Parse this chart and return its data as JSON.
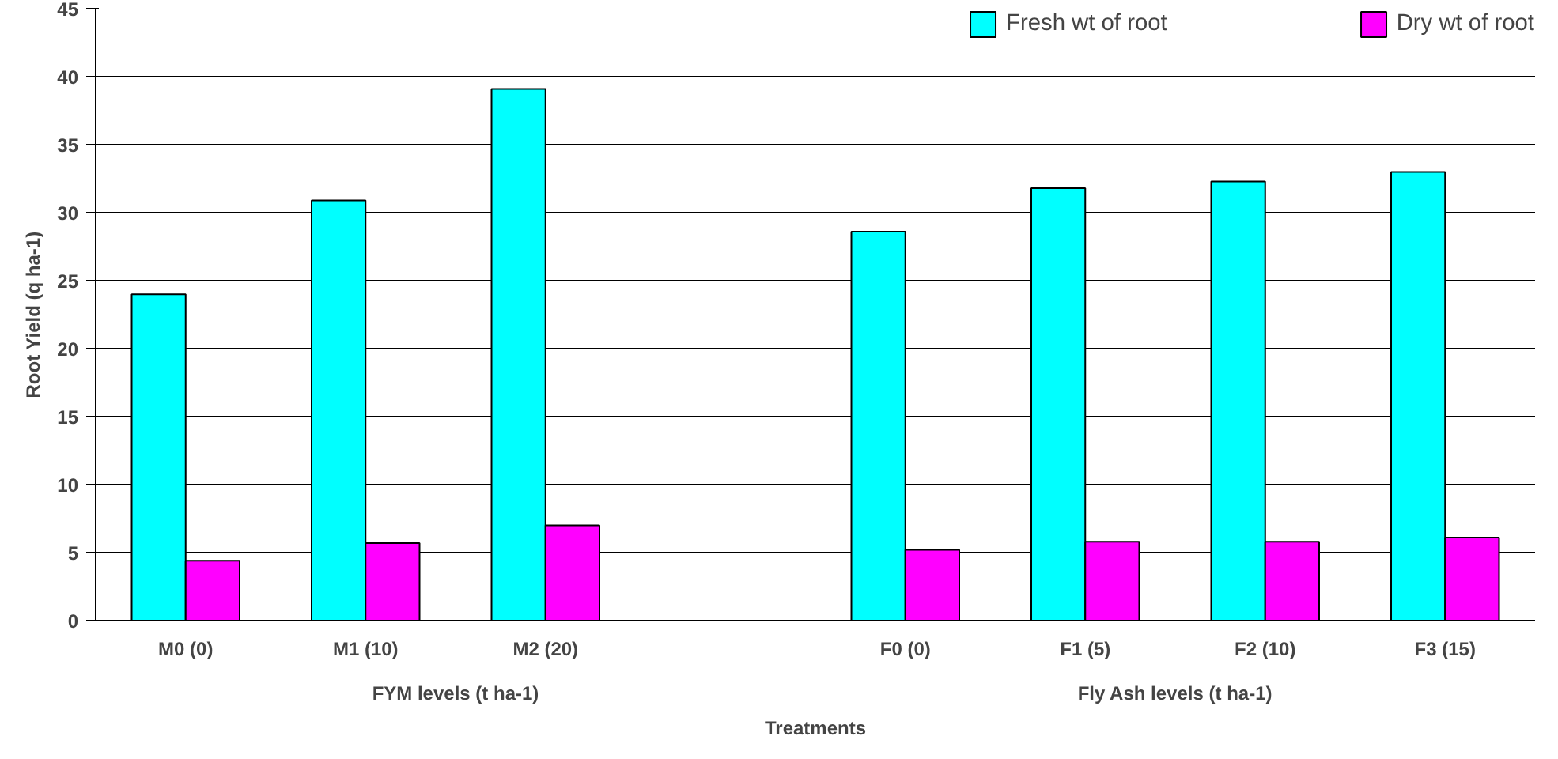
{
  "chart_data": {
    "type": "bar",
    "xlabel": "Treatments",
    "ylabel": "Root Yield (q ha-1)",
    "categories": [
      "M0 (0)",
      "M1 (10)",
      "M2 (20)",
      null,
      "F0 (0)",
      "F1 (5)",
      "F2 (10)",
      "F3 (15)"
    ],
    "series": [
      {
        "name": "Fresh wt of root",
        "color": "#00ffff",
        "values": [
          24.0,
          30.9,
          39.1,
          null,
          28.6,
          31.8,
          32.3,
          33.0
        ]
      },
      {
        "name": "Dry wt of root",
        "color": "#ff00ff",
        "values": [
          4.4,
          5.7,
          7.0,
          null,
          5.2,
          5.8,
          5.8,
          6.1
        ]
      }
    ],
    "ylim": [
      0,
      45
    ],
    "yticks": [
      0,
      5,
      10,
      15,
      20,
      25,
      30,
      35,
      40,
      45
    ],
    "grid": "y",
    "legend": "top right",
    "annotations": [
      "FYM levels (t ha-1)",
      "Fly Ash levels (t ha-1)"
    ]
  }
}
